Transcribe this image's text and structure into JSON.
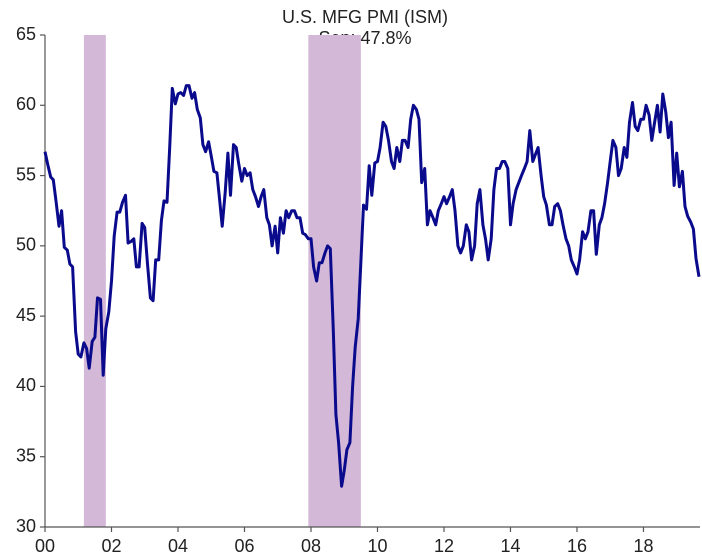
{
  "chart_data": {
    "type": "line",
    "title": "U.S. MFG PMI  (ISM)",
    "subtitle": "Sep: 47.8%",
    "x": [
      2000,
      2000.08,
      2000.17,
      2000.25,
      2000.33,
      2000.42,
      2000.5,
      2000.58,
      2000.67,
      2000.75,
      2000.83,
      2000.92,
      2001,
      2001.08,
      2001.17,
      2001.25,
      2001.33,
      2001.42,
      2001.5,
      2001.58,
      2001.67,
      2001.75,
      2001.83,
      2001.92,
      2002,
      2002.08,
      2002.17,
      2002.25,
      2002.33,
      2002.42,
      2002.5,
      2002.58,
      2002.67,
      2002.75,
      2002.83,
      2002.92,
      2003,
      2003.08,
      2003.17,
      2003.25,
      2003.33,
      2003.42,
      2003.5,
      2003.58,
      2003.67,
      2003.75,
      2003.83,
      2003.92,
      2004,
      2004.08,
      2004.17,
      2004.25,
      2004.33,
      2004.42,
      2004.5,
      2004.58,
      2004.67,
      2004.75,
      2004.83,
      2004.92,
      2005,
      2005.08,
      2005.17,
      2005.25,
      2005.33,
      2005.42,
      2005.5,
      2005.58,
      2005.67,
      2005.75,
      2005.83,
      2005.92,
      2006,
      2006.08,
      2006.17,
      2006.25,
      2006.33,
      2006.42,
      2006.5,
      2006.58,
      2006.67,
      2006.75,
      2006.83,
      2006.92,
      2007,
      2007.08,
      2007.17,
      2007.25,
      2007.33,
      2007.42,
      2007.5,
      2007.58,
      2007.67,
      2007.75,
      2007.83,
      2007.92,
      2008,
      2008.08,
      2008.17,
      2008.25,
      2008.33,
      2008.42,
      2008.5,
      2008.58,
      2008.67,
      2008.75,
      2008.83,
      2008.92,
      2009,
      2009.08,
      2009.17,
      2009.25,
      2009.33,
      2009.42,
      2009.5,
      2009.58,
      2009.67,
      2009.75,
      2009.83,
      2009.92,
      2010,
      2010.08,
      2010.17,
      2010.25,
      2010.33,
      2010.42,
      2010.5,
      2010.58,
      2010.67,
      2010.75,
      2010.83,
      2010.92,
      2011,
      2011.08,
      2011.17,
      2011.25,
      2011.33,
      2011.42,
      2011.5,
      2011.58,
      2011.67,
      2011.75,
      2011.83,
      2011.92,
      2012,
      2012.08,
      2012.17,
      2012.25,
      2012.33,
      2012.42,
      2012.5,
      2012.58,
      2012.67,
      2012.75,
      2012.83,
      2012.92,
      2013,
      2013.08,
      2013.17,
      2013.25,
      2013.33,
      2013.42,
      2013.5,
      2013.58,
      2013.67,
      2013.75,
      2013.83,
      2013.92,
      2014,
      2014.08,
      2014.17,
      2014.25,
      2014.33,
      2014.42,
      2014.5,
      2014.58,
      2014.67,
      2014.75,
      2014.83,
      2014.92,
      2015,
      2015.08,
      2015.17,
      2015.25,
      2015.33,
      2015.42,
      2015.5,
      2015.58,
      2015.67,
      2015.75,
      2015.83,
      2015.92,
      2016,
      2016.08,
      2016.17,
      2016.25,
      2016.33,
      2016.42,
      2016.5,
      2016.58,
      2016.67,
      2016.75,
      2016.83,
      2016.92,
      2017,
      2017.08,
      2017.17,
      2017.25,
      2017.33,
      2017.42,
      2017.5,
      2017.58,
      2017.67,
      2017.75,
      2017.83,
      2017.92,
      2018,
      2018.08,
      2018.17,
      2018.25,
      2018.33,
      2018.42,
      2018.5,
      2018.58,
      2018.67,
      2018.75,
      2018.83,
      2018.92,
      2019,
      2019.08,
      2019.17,
      2019.25,
      2019.33,
      2019.42,
      2019.5,
      2019.58,
      2019.67
    ],
    "series": [
      {
        "color": "#0a0a8c",
        "values": [
          56.7,
          55.8,
          54.9,
          54.7,
          53.2,
          51.4,
          52.5,
          49.9,
          49.7,
          48.7,
          48.5,
          43.9,
          42.3,
          42.1,
          43.1,
          42.7,
          41.3,
          43.2,
          43.5,
          46.3,
          46.2,
          40.8,
          44.1,
          45.3,
          47.5,
          50.7,
          52.4,
          52.4,
          53.1,
          53.6,
          50.2,
          50.3,
          50.5,
          48.5,
          48.5,
          51.6,
          51.3,
          48.8,
          46.3,
          46.1,
          49.0,
          49.0,
          51.8,
          53.2,
          53.1,
          57.0,
          61.2,
          60.1,
          60.8,
          60.9,
          60.7,
          61.4,
          61.4,
          60.5,
          60.9,
          59.7,
          59.1,
          57.2,
          56.7,
          57.4,
          56.4,
          55.3,
          55.2,
          53.3,
          51.4,
          53.8,
          56.6,
          53.6,
          57.2,
          57.0,
          55.8,
          54.6,
          55.5,
          55.0,
          55.2,
          54.0,
          53.5,
          52.8,
          53.5,
          54.0,
          52.0,
          51.5,
          50.0,
          51.4,
          49.5,
          52.0,
          50.9,
          52.5,
          52.0,
          52.5,
          52.5,
          52.0,
          52.0,
          50.9,
          50.8,
          50.5,
          50.5,
          48.5,
          47.5,
          48.8,
          48.8,
          49.5,
          50.0,
          49.8,
          44.0,
          38.0,
          36.0,
          32.9,
          34.0,
          35.5,
          36.0,
          40.0,
          42.8,
          44.8,
          48.9,
          52.9,
          52.6,
          55.7,
          53.6,
          55.9,
          56.0,
          57.0,
          58.8,
          58.5,
          57.5,
          56.0,
          55.5,
          57.0,
          56.0,
          57.5,
          57.5,
          57.0,
          59.0,
          60.0,
          59.7,
          59.0,
          54.5,
          55.5,
          51.5,
          52.5,
          52.0,
          51.5,
          52.5,
          53.0,
          53.5,
          53.0,
          53.5,
          54.0,
          52.5,
          50.0,
          49.5,
          50.0,
          51.5,
          51.0,
          49.0,
          50.0,
          53.0,
          54.0,
          51.5,
          50.5,
          49.0,
          50.5,
          54.0,
          55.5,
          55.5,
          56.0,
          56.0,
          55.5,
          51.5,
          53.0,
          54.0,
          54.5,
          55.0,
          55.5,
          56.0,
          58.2,
          56.0,
          56.5,
          57.0,
          55.0,
          53.5,
          52.9,
          51.5,
          51.5,
          52.8,
          53.0,
          52.5,
          51.5,
          50.5,
          50.0,
          49.0,
          48.5,
          48.0,
          49.0,
          51.0,
          50.5,
          51.0,
          52.5,
          52.5,
          49.4,
          51.5,
          52.0,
          53.0,
          54.5,
          56.0,
          57.5,
          57.0,
          55.0,
          55.5,
          57.0,
          56.3,
          58.8,
          60.2,
          58.5,
          58.2,
          59.0,
          59.0,
          60.0,
          59.3,
          57.5,
          58.7,
          60.0,
          58.1,
          60.8,
          59.5,
          57.7,
          58.8,
          54.3,
          56.6,
          54.2,
          55.3,
          52.8,
          52.1,
          51.7,
          51.2,
          49.1,
          47.8
        ]
      }
    ],
    "shaded_ranges": [
      [
        2001.17,
        2001.83
      ],
      [
        2007.92,
        2009.5
      ]
    ],
    "shade_color": "#d4b8d8",
    "xlim": [
      2000,
      2019.7
    ],
    "xticks": [
      {
        "value": 2000,
        "label": "00"
      },
      {
        "value": 2002,
        "label": "02"
      },
      {
        "value": 2004,
        "label": "04"
      },
      {
        "value": 2006,
        "label": "06"
      },
      {
        "value": 2008,
        "label": "08"
      },
      {
        "value": 2010,
        "label": "10"
      },
      {
        "value": 2012,
        "label": "12"
      },
      {
        "value": 2014,
        "label": "14"
      },
      {
        "value": 2016,
        "label": "16"
      },
      {
        "value": 2018,
        "label": "18"
      }
    ],
    "ylim": [
      30,
      65
    ],
    "yticks": [
      30,
      35,
      40,
      45,
      50,
      55,
      60,
      65
    ]
  }
}
